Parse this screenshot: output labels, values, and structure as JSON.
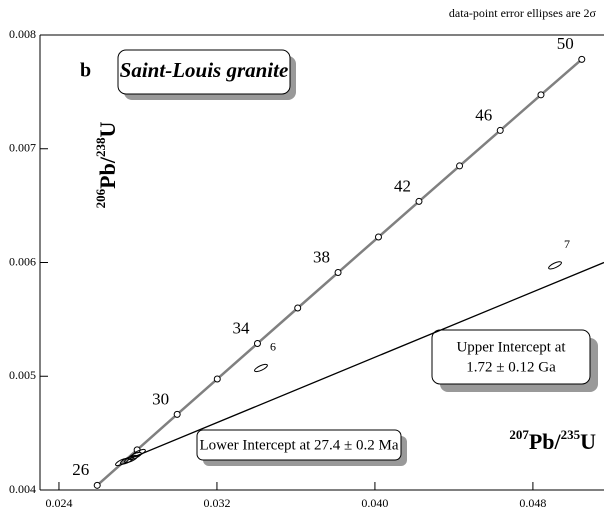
{
  "chart_data": {
    "type": "scatter",
    "note_top": "data-point error ellipses are 2σ",
    "panel": "b",
    "title": "Saint-Louis granite",
    "x_label": [
      "207",
      "Pb/",
      "235",
      "U"
    ],
    "y_label": [
      "206",
      "Pb/",
      "238",
      "U"
    ],
    "xlim": [
      0.02304,
      0.0516
    ],
    "ylim": [
      0.004,
      0.008
    ],
    "xticks": [
      0.024,
      0.032,
      {
        "value": 0.04,
        "label": "0.040"
      },
      0.048
    ],
    "yticks": [
      0.004,
      0.005,
      0.006,
      0.007,
      0.008
    ],
    "concordia": {
      "color": "#808080",
      "x": [
        0.025937,
        0.027959,
        0.029986,
        0.032017,
        0.034052,
        0.03609,
        0.038133,
        0.04018,
        0.042231,
        0.044286,
        0.046345,
        0.048408,
        0.050475
      ],
      "y": [
        0.004041,
        0.004353,
        0.004665,
        0.004976,
        0.005288,
        0.0056,
        0.005912,
        0.006224,
        0.006537,
        0.006849,
        0.007161,
        0.007474,
        0.007786
      ],
      "labels": [
        26,
        null,
        30,
        null,
        34,
        null,
        38,
        null,
        42,
        null,
        46,
        null,
        50
      ]
    },
    "discordia": {
      "color": "#000000",
      "x": [
        0.02736,
        0.0516
      ],
      "y": [
        0.004259,
        0.006
      ]
    },
    "ellipses": {
      "x": [
        0.02719,
        0.02744,
        0.02765,
        0.02785,
        0.02805,
        0.03423,
        0.04912
      ],
      "y": [
        0.004246,
        0.004259,
        0.004273,
        0.004299,
        0.004325,
        0.005073,
        0.005975
      ],
      "labels": [
        null,
        null,
        null,
        null,
        null,
        6,
        7
      ]
    },
    "upper_intercept": [
      "Upper Intercept at",
      "1.72 ± 0.12 Ga"
    ],
    "lower_intercept": "Lower Intercept at 27.4 ± 0.2 Ma"
  }
}
